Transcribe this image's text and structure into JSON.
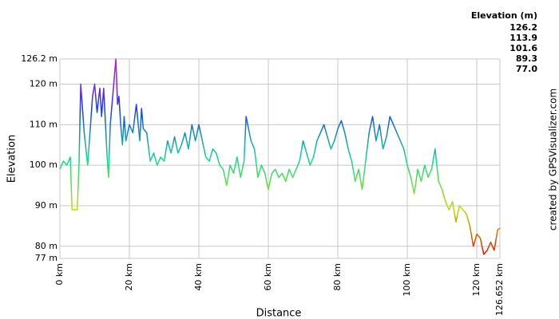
{
  "chart_data": {
    "type": "line",
    "x_label": "Distance",
    "y_label": "Elevation",
    "credit": "created by GPSVisualizer.com",
    "color_scale_title": "Elevation (m)",
    "color_scale": [
      {
        "value": 126.2,
        "color": "#dd10dd"
      },
      {
        "value": 113.9,
        "color": "#1a3cf0"
      },
      {
        "value": 101.6,
        "color": "#10d890"
      },
      {
        "value": 89.3,
        "color": "#b8e000"
      },
      {
        "value": 77,
        "label": "77.0",
        "color": "#ee0000"
      }
    ],
    "grid": true,
    "xlim": [
      0,
      126.652
    ],
    "ylim": [
      77,
      126.2
    ],
    "xticks": [
      {
        "value": 0,
        "label": "0 km"
      },
      {
        "value": 20,
        "label": "20 km"
      },
      {
        "value": 40,
        "label": "40 km"
      },
      {
        "value": 60,
        "label": "60 km"
      },
      {
        "value": 80,
        "label": "80 km"
      },
      {
        "value": 100,
        "label": "100 km"
      },
      {
        "value": 120,
        "label": "120 km"
      },
      {
        "value": 126.652,
        "label": "126.652 km"
      }
    ],
    "yticks": [
      {
        "value": 77,
        "label": "77 m"
      },
      {
        "value": 80,
        "label": "80 m"
      },
      {
        "value": 90,
        "label": "90 m"
      },
      {
        "value": 100,
        "label": "100 m"
      },
      {
        "value": 110,
        "label": "110 m"
      },
      {
        "value": 120,
        "label": "120 m"
      },
      {
        "value": 126.2,
        "label": "126.2 m"
      }
    ],
    "x": [
      0,
      1,
      2,
      3,
      3.5,
      4,
      5,
      5.5,
      6,
      7,
      8,
      9.4,
      10,
      10.7,
      11.5,
      12,
      12.6,
      13.6,
      14,
      14.5,
      15.6,
      16.1,
      16.6,
      17,
      17.5,
      18,
      18.5,
      19,
      20,
      21,
      22,
      23,
      23.5,
      24,
      25,
      26,
      27,
      28,
      29,
      30,
      31,
      32,
      33,
      34,
      35,
      36,
      37,
      38,
      39,
      40,
      41,
      42,
      43,
      44,
      45,
      46,
      47,
      48,
      49,
      50,
      51,
      52,
      53,
      53.6,
      55,
      56,
      57,
      58,
      59,
      60,
      61,
      62,
      63,
      64,
      65,
      66,
      67,
      68,
      69,
      70,
      71,
      72,
      73,
      74,
      75,
      76,
      77,
      78,
      79,
      80,
      81,
      82,
      83,
      84,
      85,
      86,
      87,
      88,
      89,
      90,
      91,
      92,
      93,
      94,
      95,
      96,
      97,
      98,
      99,
      100,
      101,
      102,
      103,
      104,
      105,
      106,
      107,
      108,
      109,
      110,
      111,
      112,
      113,
      114,
      115,
      116,
      117,
      118,
      119,
      120,
      121,
      122,
      123,
      124,
      125,
      126,
      126.652
    ],
    "values": [
      99,
      101,
      100,
      102,
      89,
      89,
      89,
      100,
      120,
      108,
      100,
      117,
      120,
      113,
      119,
      112,
      119,
      102,
      97,
      110,
      121,
      126.2,
      115,
      117,
      110,
      105,
      112,
      106,
      110,
      108,
      115,
      106,
      114,
      109,
      108,
      101,
      103,
      100,
      102,
      101,
      106,
      103,
      107,
      103,
      105,
      108,
      104,
      110,
      106,
      110,
      106,
      102,
      101,
      104,
      103,
      100,
      99,
      95,
      100,
      98,
      102,
      97,
      101,
      112,
      106,
      104,
      97,
      100,
      98,
      94,
      98,
      99,
      97,
      98,
      96,
      99,
      97,
      99,
      101,
      106,
      103,
      100,
      102,
      106,
      108,
      110,
      107,
      104,
      106,
      109,
      111,
      108,
      104,
      101,
      96,
      99,
      94,
      101,
      108,
      112,
      106,
      110,
      104,
      107,
      112,
      110,
      108,
      106,
      104,
      100,
      97,
      93,
      99,
      96,
      100,
      97,
      99,
      104,
      96,
      94,
      91,
      89,
      91,
      86,
      90,
      89,
      88,
      85,
      80,
      83,
      82,
      78,
      79,
      81,
      79,
      84,
      84.5
    ]
  }
}
